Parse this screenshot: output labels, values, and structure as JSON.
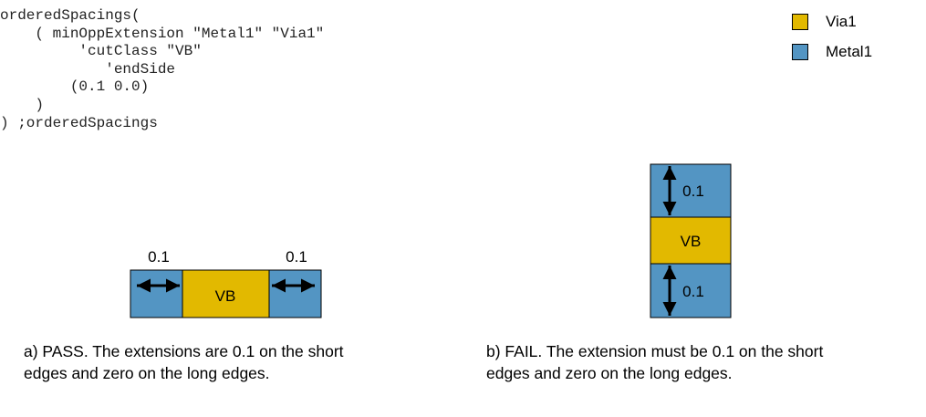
{
  "code_lines": [
    "orderedSpacings(",
    "    ( minOppExtension \"Metal1\" \"Via1\"",
    "         'cutClass \"VB\"",
    "            'endSide",
    "        (0.1 0.0)",
    "    )",
    ") ;orderedSpacings"
  ],
  "legend": [
    {
      "label": "Via1",
      "color": "#e2b900"
    },
    {
      "label": "Metal1",
      "color": "#5395c3"
    }
  ],
  "colors": {
    "metal": "#5395c3",
    "via": "#e2b900",
    "outline": "#000000"
  },
  "diagram_a": {
    "cut_label": "VB",
    "left_extension": "0.1",
    "right_extension": "0.1"
  },
  "diagram_b": {
    "cut_label": "VB",
    "top_extension": "0.1",
    "bottom_extension": "0.1"
  },
  "captions": {
    "a": [
      "a) PASS. The extensions are 0.1 on the short",
      "edges and zero on the long edges."
    ],
    "b": [
      "b) FAIL. The extension must be 0.1 on the short",
      "edges and zero on the long edges."
    ]
  }
}
